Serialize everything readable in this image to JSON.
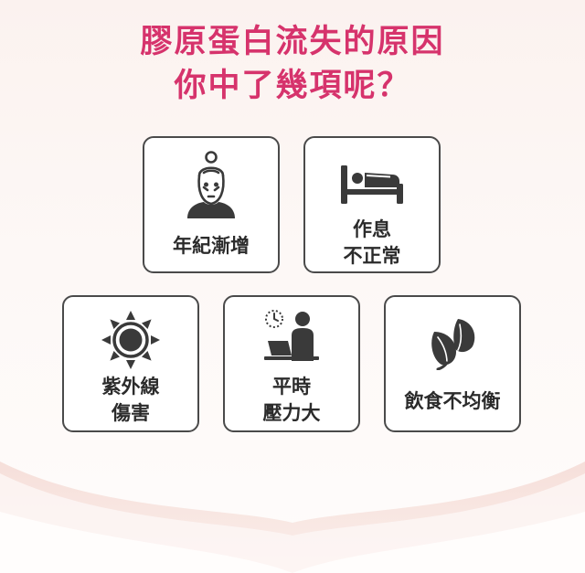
{
  "title": {
    "line1": "膠原蛋白流失的原因",
    "line2": "你中了幾項呢？"
  },
  "colors": {
    "accent": "#d6336c",
    "card_border": "#4a4a4a",
    "icon": "#3a3a3a",
    "background": "#fbf2ef"
  },
  "cards": [
    {
      "icon": "elderly-woman-icon",
      "lines": [
        "年紀漸增"
      ]
    },
    {
      "icon": "bed-icon",
      "lines": [
        "作息",
        "不正常"
      ]
    },
    {
      "icon": "sun-icon",
      "lines": [
        "紫外線",
        "傷害"
      ]
    },
    {
      "icon": "working-at-computer-icon",
      "lines": [
        "平時",
        "壓力大"
      ]
    },
    {
      "icon": "leafy-vegetable-icon",
      "lines": [
        "飲食不均衡"
      ]
    }
  ]
}
